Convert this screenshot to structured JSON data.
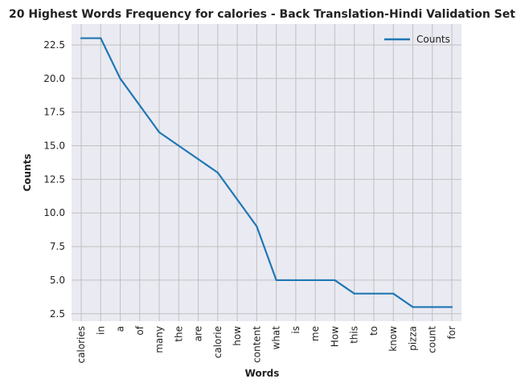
{
  "chart_data": {
    "type": "line",
    "title": "20 Highest Words Frequency for calories - Back Translation-Hindi Validation Set",
    "xlabel": "Words",
    "ylabel": "Counts",
    "categories": [
      "calories",
      "in",
      "a",
      "of",
      "many",
      "the",
      "are",
      "calorie",
      "how",
      "content",
      "what",
      "is",
      "me",
      "How",
      "this",
      "to",
      "know",
      "pizza",
      "count",
      "for"
    ],
    "series": [
      {
        "name": "Counts",
        "values": [
          23,
          23,
          20,
          18,
          16,
          15,
          14,
          13,
          11,
          9,
          5,
          5,
          5,
          5,
          4,
          4,
          4,
          3,
          3,
          3
        ]
      }
    ],
    "ylim": [
      1.95,
      24.05
    ],
    "yticks": [
      "2.5",
      "5.0",
      "7.5",
      "10.0",
      "12.5",
      "15.0",
      "17.5",
      "20.0",
      "22.5"
    ],
    "grid": true,
    "legend_position": "top-right",
    "colors": {
      "line": "#1f77b4",
      "background": "#eaeaf2",
      "grid": "#c0c0c0"
    }
  }
}
